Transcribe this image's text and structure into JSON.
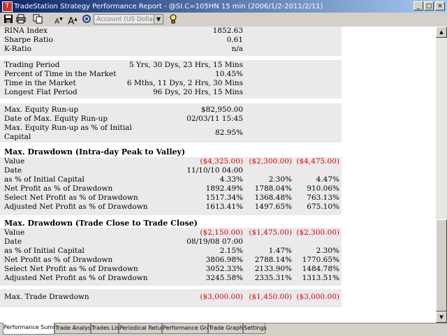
{
  "window": {
    "title": "TradeStation Strategy Performance Report - @SI.C=105HN 15 min (2006/1/2-2011/2/11)",
    "controls": {
      "minimize": "_",
      "maximize": "□",
      "close": "×"
    }
  },
  "toolbar": {
    "icons": [
      "save-icon",
      "print-icon",
      "copy-icon",
      "font-decrease-icon",
      "font-increase-icon",
      "settings-icon",
      "lightbulb-icon"
    ],
    "font_small_label": "A",
    "font_large_label": "A",
    "account_select": "Account (US Dollar)"
  },
  "report": {
    "rows_top": [
      {
        "label": "RINA Index",
        "v1": "1852.63"
      },
      {
        "label": "Sharpe Ratio",
        "v1": "0.61"
      },
      {
        "label": "K-Ratio",
        "v1": "n/a"
      }
    ],
    "rows_period": [
      {
        "label": "Trading Period",
        "v1": "5 Yrs, 30 Dys, 23 Hrs, 15 Mins"
      },
      {
        "label": "Percent of Time in the Market",
        "v1": "10.45%"
      },
      {
        "label": "Time in the Market",
        "v1": "6 Mths, 11 Dys, 2 Hrs, 30 Mins"
      },
      {
        "label": "Longest Flat Period",
        "v1": "96 Dys, 20 Hrs, 15 Mins"
      }
    ],
    "rows_runup": [
      {
        "label": "Max. Equity Run-up",
        "v1": "$82,950.00"
      },
      {
        "label": "Date of Max. Equity Run-up",
        "v1": "02/03/11 15:45"
      },
      {
        "label": "Max. Equity Run-up as % of Initial",
        "label2": "Capital",
        "v1": "82.95%"
      }
    ],
    "drawdown_intraday": {
      "title": "Max. Drawdown (Intra-day Peak to Valley)",
      "rows": [
        {
          "label": "Value",
          "v1": "($4,325.00)",
          "v2": "($2,300.00)",
          "v3": "($4,475.00)",
          "negative": true
        },
        {
          "label": "Date",
          "v1": "11/10/10 04:00",
          "v2": "",
          "v3": ""
        },
        {
          "label": "as % of Initial Capital",
          "v1": "4.33%",
          "v2": "2.30%",
          "v3": "4.47%"
        },
        {
          "label": "Net Profit as % of Drawdown",
          "v1": "1892.49%",
          "v2": "1788.04%",
          "v3": "910.06%"
        },
        {
          "label": "Select Net Profit as % of Drawdown",
          "v1": "1517.34%",
          "v2": "1368.48%",
          "v3": "763.13%"
        },
        {
          "label": "Adjusted Net Profit as % of Drawdown",
          "v1": "1613.41%",
          "v2": "1497.65%",
          "v3": "675.10%"
        }
      ]
    },
    "drawdown_close": {
      "title": "Max. Drawdown (Trade Close to Trade Close)",
      "rows": [
        {
          "label": "Value",
          "v1": "($2,150.00)",
          "v2": "($1,475.00)",
          "v3": "($2,300.00)",
          "negative": true
        },
        {
          "label": "Date",
          "v1": "08/19/08 07:00",
          "v2": "",
          "v3": ""
        },
        {
          "label": "as % of Initial Capital",
          "v1": "2.15%",
          "v2": "1.47%",
          "v3": "2.30%"
        },
        {
          "label": "Net Profit as % of Drawdown",
          "v1": "3806.98%",
          "v2": "2788.14%",
          "v3": "1770.65%"
        },
        {
          "label": "Select Net Profit as % of Drawdown",
          "v1": "3052.33%",
          "v2": "2133.90%",
          "v3": "1484.78%"
        },
        {
          "label": "Adjusted Net Profit as % of Drawdown",
          "v1": "3245.58%",
          "v2": "2335.31%",
          "v3": "1313.51%"
        }
      ]
    },
    "max_trade_drawdown": {
      "label": "Max. Trade Drawdown",
      "v1": "($3,000.00)",
      "v2": "($1,450.00)",
      "v3": "($3,000.00)"
    }
  },
  "tabs": [
    {
      "label": "Performance Summary",
      "active": true
    },
    {
      "label": "Trade Analysis"
    },
    {
      "label": "Trades List"
    },
    {
      "label": "Periodical Returns"
    },
    {
      "label": "Performance Graphs"
    },
    {
      "label": "Trade Graphs"
    },
    {
      "label": "Settings"
    }
  ],
  "scrollbar": {
    "up": "▲",
    "down": "▼"
  },
  "colors": {
    "negative": "#e00000",
    "title_start": "#0a246a",
    "title_end": "#a6caf0"
  }
}
